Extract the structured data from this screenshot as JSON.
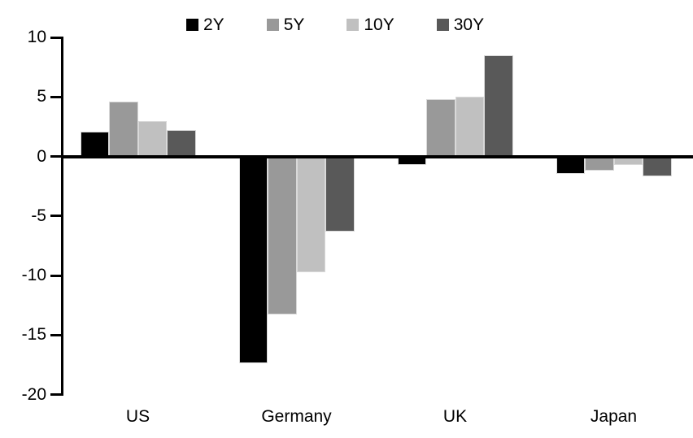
{
  "chart_data": {
    "type": "bar",
    "title": "",
    "xlabel": "",
    "ylabel": "",
    "categories": [
      "US",
      "Germany",
      "UK",
      "Japan"
    ],
    "series": [
      {
        "name": "2Y",
        "color": "#000000",
        "values": [
          2.1,
          -17.4,
          -0.7,
          -1.5
        ]
      },
      {
        "name": "5Y",
        "color": "#999999",
        "values": [
          4.6,
          -13.3,
          4.8,
          -1.2
        ]
      },
      {
        "name": "10Y",
        "color": "#c0c0c0",
        "values": [
          3.0,
          -9.7,
          5.0,
          -0.7
        ]
      },
      {
        "name": "30Y",
        "color": "#595959",
        "values": [
          2.2,
          -6.3,
          8.5,
          -1.7
        ]
      }
    ],
    "ylim": [
      -20,
      10
    ],
    "yticks": [
      10,
      5,
      0,
      -5,
      -10,
      -15,
      -20
    ],
    "grid": false,
    "legend_position": "top-center",
    "axis_color": "#000000",
    "bar_border_color": "#d9d9d9",
    "background_color": "#ffffff"
  }
}
